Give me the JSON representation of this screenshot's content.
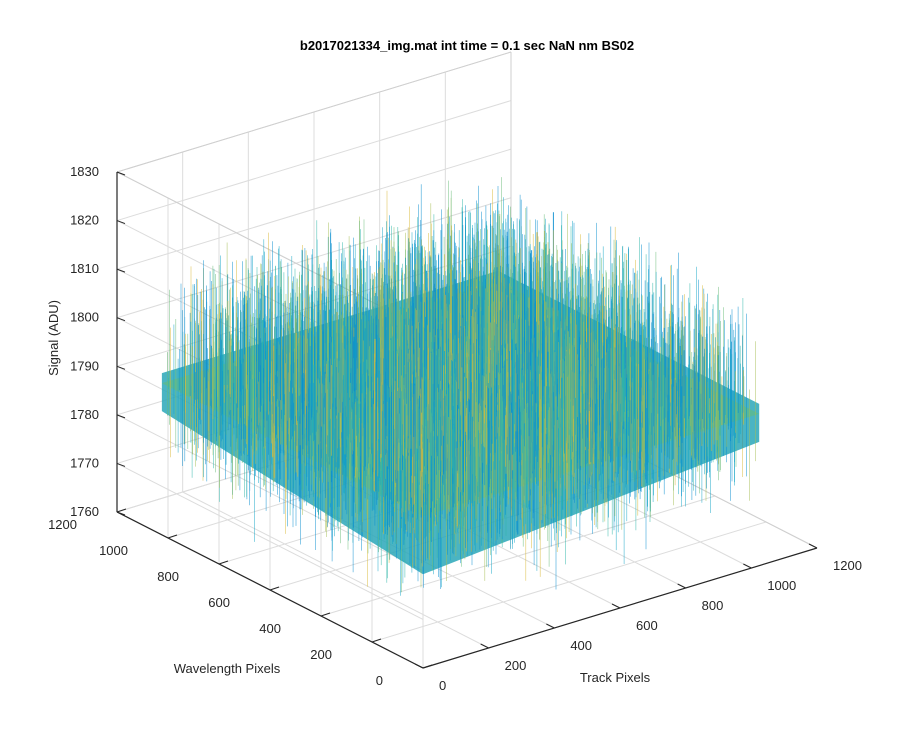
{
  "figure": {
    "title": "b2017021334_img.mat int time = 0.1 sec  NaN nm BS02"
  },
  "chart_data": {
    "type": "surface",
    "title": "b2017021334_img.mat int time = 0.1 sec  NaN nm BS02",
    "xlabel": "Track Pixels",
    "ylabel": "Wavelength Pixels",
    "zlabel": "Signal (ADU)",
    "xlim": [
      0,
      1200
    ],
    "ylim": [
      0,
      1200
    ],
    "zlim": [
      1760,
      1830
    ],
    "x_ticks": [
      0,
      200,
      400,
      600,
      800,
      1000,
      1200
    ],
    "y_ticks": [
      0,
      200,
      400,
      600,
      800,
      1000,
      1200
    ],
    "z_ticks": [
      1760,
      1770,
      1780,
      1790,
      1800,
      1810,
      1820,
      1830
    ],
    "x_tick_labels": [
      "0",
      "200",
      "400",
      "600",
      "800",
      "1000",
      "1200"
    ],
    "y_tick_labels": [
      "0",
      "200",
      "400",
      "600",
      "800",
      "1000",
      "1200"
    ],
    "z_tick_labels": [
      "1760",
      "1770",
      "1780",
      "1790",
      "1800",
      "1810",
      "1820",
      "1830"
    ],
    "surface": {
      "x_extent": [
        0,
        1024
      ],
      "y_extent": [
        0,
        1024
      ],
      "mean_signal": 1790,
      "noise_range": [
        1765,
        1822
      ],
      "colormap": "parula",
      "colors": [
        "#0a8fcf",
        "#17a6c7",
        "#2fb5a9",
        "#6bbd7a",
        "#a6be55",
        "#d9b93a"
      ]
    },
    "grid": true
  }
}
